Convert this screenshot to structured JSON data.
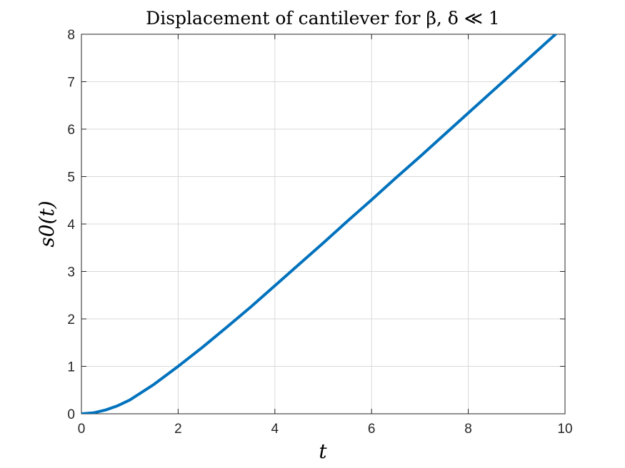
{
  "chart_data": {
    "type": "line",
    "title": "Displacement of cantilever for β, δ ≪ 1",
    "xlabel": "t",
    "ylabel": "s0(t)",
    "xlim": [
      0,
      10
    ],
    "ylim": [
      0,
      8
    ],
    "xticks": [
      0,
      2,
      4,
      6,
      8,
      10
    ],
    "yticks": [
      0,
      1,
      2,
      3,
      4,
      5,
      6,
      7,
      8
    ],
    "grid": true,
    "series": [
      {
        "color": "#0072BD",
        "x": [
          0,
          0.25,
          0.5,
          0.75,
          1,
          1.5,
          2,
          2.5,
          3,
          3.5,
          4,
          4.5,
          5,
          5.5,
          6,
          6.5,
          7,
          7.5,
          8,
          8.5,
          9,
          9.5,
          10
        ],
        "y": [
          0,
          0.02,
          0.08,
          0.17,
          0.29,
          0.62,
          1.0,
          1.4,
          1.82,
          2.25,
          2.7,
          3.15,
          3.6,
          4.06,
          4.51,
          4.97,
          5.42,
          5.88,
          6.34,
          6.8,
          7.26,
          7.72,
          8.18
        ]
      }
    ]
  }
}
